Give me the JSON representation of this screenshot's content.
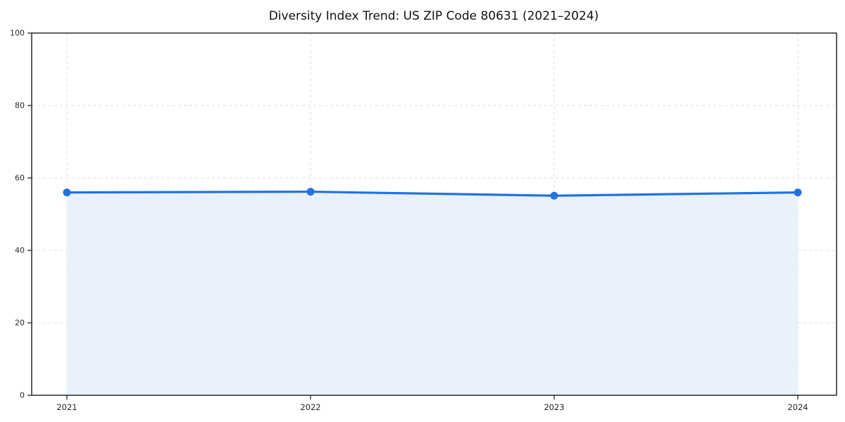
{
  "chart_data": {
    "type": "line",
    "title": "Diversity Index Trend: US ZIP Code 80631 (2021–2024)",
    "x": [
      2021,
      2022,
      2023,
      2024
    ],
    "xtick_labels": [
      "2021",
      "2022",
      "2023",
      "2024"
    ],
    "series": [
      {
        "name": "Diversity Index",
        "values": [
          56.0,
          56.2,
          55.1,
          56.0
        ]
      }
    ],
    "xlabel": "",
    "ylabel": "",
    "ylim": [
      0,
      100
    ],
    "yticks": [
      0,
      20,
      40,
      60,
      80,
      100
    ],
    "grid": true,
    "grid_style": "dashed",
    "legend_position": "none",
    "area_fill": true,
    "marker": "circle",
    "colors": {
      "line": "#2271e3",
      "marker": "#2271e3",
      "area": "#e9f1fc",
      "grid": "#dcdcdc",
      "spine": "#1a1a1a",
      "tick_label": "#262626",
      "title": "#111111",
      "background": "#ffffff"
    }
  }
}
